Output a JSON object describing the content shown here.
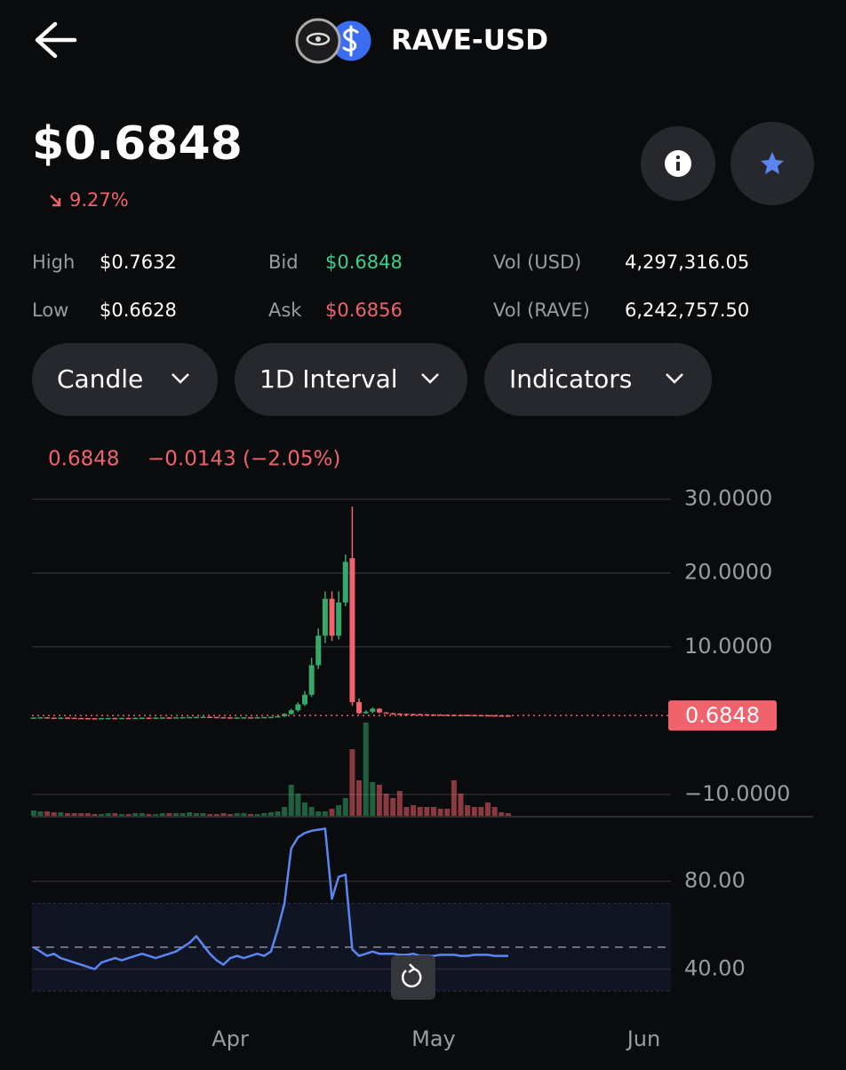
{
  "header": {
    "title": "RAVE-USD"
  },
  "price": {
    "value": "$0.6848",
    "change": "9.27%"
  },
  "stats": [
    {
      "label": "High",
      "value": "$0.7632"
    },
    {
      "label": "Bid",
      "value": "$0.6848"
    },
    {
      "label": "Vol (USD)",
      "value": "4,297,316.05"
    },
    {
      "label": "Low",
      "value": "$0.6628"
    },
    {
      "label": "Ask",
      "value": "$0.6856"
    },
    {
      "label": "Vol (RAVE)",
      "value": "6,242,757.50"
    }
  ],
  "controls": [
    "Candle",
    "1D Interval",
    "Indicators"
  ],
  "chart_data": {
    "type": "candlestick",
    "legend": {
      "close": "0.6848",
      "change": "−0.0143 (−2.05%)"
    },
    "up_color": "#35a86a",
    "down_color": "#f0626c",
    "xlim": [
      -0.5,
      94
    ],
    "xticks": [
      {
        "value": 29,
        "label": "Apr"
      },
      {
        "value": 59,
        "label": "May"
      },
      {
        "value": 90,
        "label": "Jun"
      }
    ],
    "ylim": [
      -12.9,
      30.8
    ],
    "yticks": [
      {
        "value": 30,
        "label": "30.0000"
      },
      {
        "value": 20,
        "label": "20.0000"
      },
      {
        "value": 10,
        "label": "10.0000"
      },
      {
        "value": -10,
        "label": "−10.0000"
      }
    ],
    "grid": true,
    "last_price": {
      "value": 0.6848,
      "label": "0.6848"
    },
    "open": [
      0.4,
      0.42,
      0.45,
      0.4,
      0.38,
      0.41,
      0.39,
      0.36,
      0.34,
      0.33,
      0.31,
      0.34,
      0.36,
      0.35,
      0.37,
      0.36,
      0.38,
      0.4,
      0.39,
      0.41,
      0.43,
      0.42,
      0.44,
      0.46,
      0.48,
      0.5,
      0.52,
      0.49,
      0.46,
      0.44,
      0.42,
      0.43,
      0.45,
      0.44,
      0.46,
      0.48,
      0.5,
      0.6,
      0.9,
      1.4,
      2.2,
      3.5,
      7.5,
      11.5,
      16.5,
      11.5,
      16.0,
      22.0,
      2.5,
      1.0,
      1.2,
      1.6,
      1.1,
      1.0,
      0.95,
      0.92,
      0.9,
      0.88,
      0.85,
      0.83,
      0.82,
      0.8,
      0.79,
      0.78,
      0.77,
      0.76,
      0.75,
      0.74,
      0.72,
      0.71,
      0.6991
    ],
    "high": [
      0.45,
      0.48,
      0.48,
      0.43,
      0.44,
      0.44,
      0.42,
      0.39,
      0.37,
      0.36,
      0.37,
      0.39,
      0.39,
      0.4,
      0.4,
      0.41,
      0.43,
      0.43,
      0.44,
      0.46,
      0.46,
      0.47,
      0.49,
      0.51,
      0.53,
      0.55,
      0.55,
      0.52,
      0.49,
      0.47,
      0.46,
      0.48,
      0.48,
      0.49,
      0.51,
      0.53,
      0.63,
      1.0,
      1.6,
      2.5,
      4.0,
      8.5,
      12.5,
      17.5,
      17.5,
      17.5,
      22.5,
      29.0,
      3.0,
      1.4,
      1.8,
      1.7,
      1.15,
      1.05,
      1.0,
      0.97,
      0.95,
      0.93,
      0.9,
      0.88,
      0.87,
      0.85,
      0.84,
      0.83,
      0.82,
      0.81,
      0.8,
      0.79,
      0.77,
      0.76,
      0.7632
    ],
    "low": [
      0.37,
      0.39,
      0.37,
      0.35,
      0.35,
      0.36,
      0.33,
      0.31,
      0.3,
      0.28,
      0.28,
      0.31,
      0.32,
      0.32,
      0.33,
      0.33,
      0.35,
      0.36,
      0.36,
      0.38,
      0.39,
      0.39,
      0.41,
      0.43,
      0.45,
      0.47,
      0.46,
      0.43,
      0.41,
      0.39,
      0.39,
      0.4,
      0.41,
      0.41,
      0.43,
      0.45,
      0.47,
      0.5,
      0.8,
      1.2,
      2.0,
      3.2,
      7.0,
      10.5,
      10.8,
      11.0,
      15.5,
      2.0,
      0.9,
      0.9,
      1.0,
      1.0,
      0.96,
      0.91,
      0.88,
      0.86,
      0.84,
      0.81,
      0.79,
      0.78,
      0.76,
      0.75,
      0.74,
      0.73,
      0.72,
      0.71,
      0.7,
      0.68,
      0.67,
      0.66,
      0.6628
    ],
    "close": [
      0.42,
      0.45,
      0.4,
      0.38,
      0.41,
      0.39,
      0.36,
      0.34,
      0.33,
      0.31,
      0.34,
      0.36,
      0.35,
      0.37,
      0.36,
      0.38,
      0.4,
      0.39,
      0.41,
      0.43,
      0.42,
      0.44,
      0.46,
      0.48,
      0.5,
      0.52,
      0.49,
      0.46,
      0.44,
      0.42,
      0.43,
      0.45,
      0.44,
      0.46,
      0.48,
      0.5,
      0.6,
      0.9,
      1.4,
      2.2,
      3.5,
      7.5,
      11.5,
      16.5,
      11.5,
      16.0,
      21.5,
      2.5,
      1.0,
      1.2,
      1.6,
      1.1,
      1.0,
      0.95,
      0.92,
      0.9,
      0.88,
      0.85,
      0.83,
      0.82,
      0.8,
      0.79,
      0.78,
      0.77,
      0.76,
      0.75,
      0.74,
      0.72,
      0.71,
      0.6991,
      0.6848
    ],
    "volume": [
      6,
      5,
      5,
      4,
      4,
      3,
      3,
      3,
      3,
      2,
      2,
      3,
      3,
      2,
      2,
      3,
      3,
      2,
      2,
      3,
      3,
      3,
      3,
      4,
      3,
      3,
      2,
      2,
      3,
      2,
      3,
      3,
      2,
      2,
      3,
      4,
      5,
      10,
      35,
      25,
      15,
      10,
      5,
      5,
      8,
      12,
      20,
      75,
      40,
      105,
      38,
      35,
      25,
      20,
      28,
      10,
      12,
      10,
      10,
      10,
      8,
      8,
      40,
      25,
      12,
      10,
      10,
      15,
      10,
      4,
      3
    ],
    "rsi": {
      "color": "#5b86f0",
      "ylim": [
        24,
        109
      ],
      "yticks": [
        {
          "value": 80,
          "label": "80.00"
        },
        {
          "value": 40,
          "label": "40.00"
        }
      ],
      "band": [
        30,
        70
      ],
      "midline": 50,
      "values": [
        50,
        48,
        46,
        47,
        45,
        44,
        43,
        42,
        41,
        40,
        43,
        44,
        45,
        44,
        45,
        46,
        47,
        46,
        45,
        46,
        47,
        48,
        50,
        52,
        55,
        51,
        47,
        44,
        42,
        45,
        46,
        45,
        46,
        47,
        46,
        48,
        58,
        70,
        95,
        100,
        102,
        103,
        103.5,
        104,
        72,
        82,
        83,
        49,
        46,
        47,
        48,
        47,
        47,
        47,
        46.5,
        46.5,
        47,
        46,
        46,
        46,
        46.5,
        46.5,
        46.5,
        46,
        46,
        46.5,
        46.5,
        46.5,
        46,
        46,
        46
      ]
    }
  }
}
